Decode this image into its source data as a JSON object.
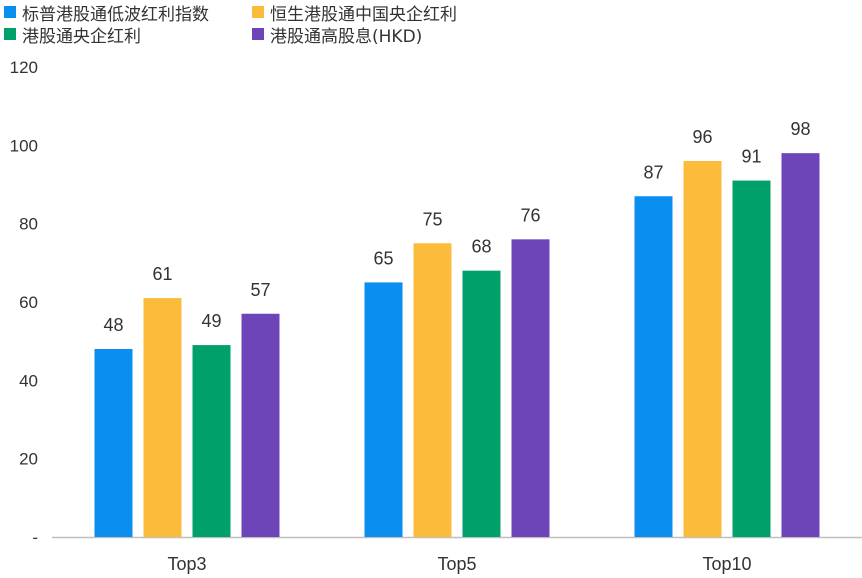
{
  "chart_data": {
    "type": "bar",
    "categories": [
      "Top3",
      "Top5",
      "Top10"
    ],
    "series": [
      {
        "name": "标普港股通低波红利指数",
        "color": "#0A8EF0",
        "values": [
          48,
          65,
          87
        ]
      },
      {
        "name": "恒生港股通中国央企红利",
        "color": "#FBBC3C",
        "values": [
          61,
          75,
          96
        ]
      },
      {
        "name": "港股通央企红利",
        "color": "#00A06A",
        "values": [
          49,
          68,
          91
        ]
      },
      {
        "name": "港股通高股息(HKD)",
        "color": "#6E45B8",
        "values": [
          57,
          76,
          98
        ]
      }
    ],
    "y_ticks": [
      "-",
      "20",
      "40",
      "60",
      "80",
      "100",
      "120"
    ],
    "ylim": [
      0,
      120
    ],
    "grid": false,
    "legend_position": "top-left",
    "title": "",
    "xlabel": "",
    "ylabel": ""
  }
}
